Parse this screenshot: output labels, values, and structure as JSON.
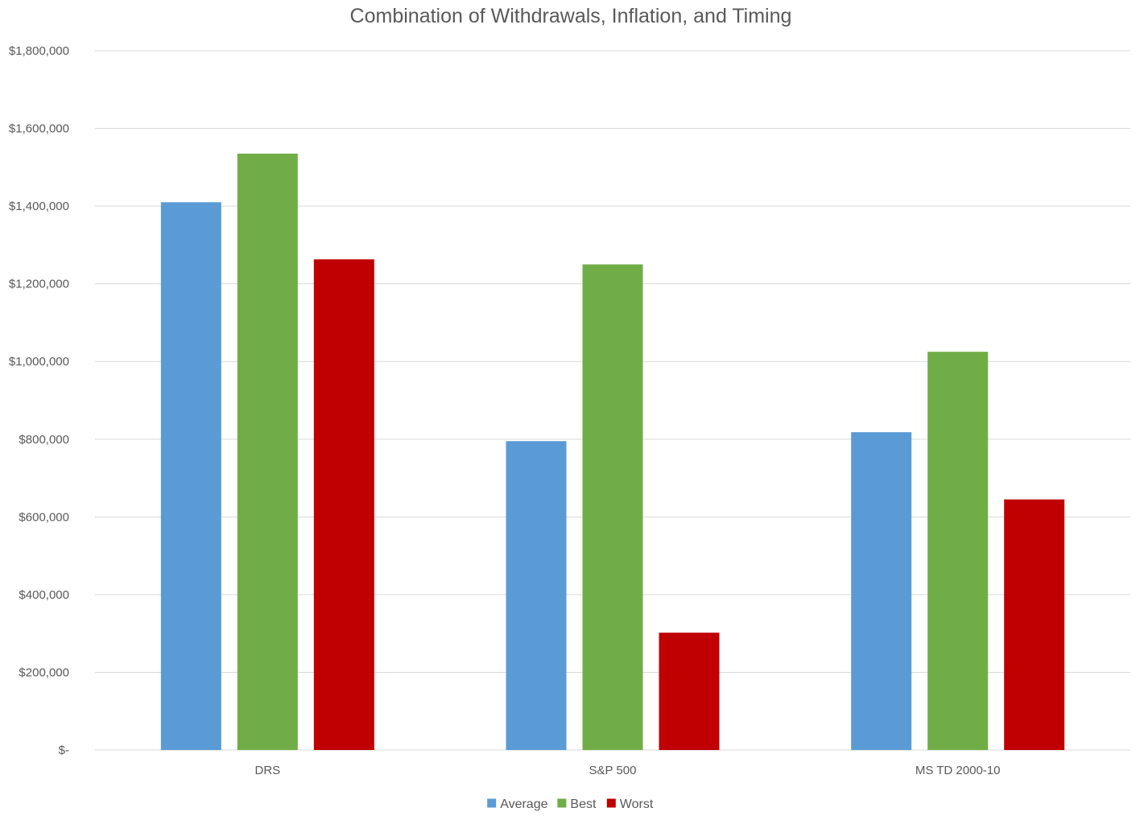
{
  "chart_data": {
    "type": "bar",
    "title": "Combination of Withdrawals, Inflation, and Timing",
    "xlabel": "",
    "ylabel": "",
    "categories": [
      "DRS",
      "S&P 500",
      "MS TD 2000-10"
    ],
    "series": [
      {
        "name": "Average",
        "color": "#5b9bd5",
        "values": [
          1410000,
          795000,
          818000
        ]
      },
      {
        "name": "Best",
        "color": "#70ad47",
        "values": [
          1535000,
          1250000,
          1025000
        ]
      },
      {
        "name": "Worst",
        "color": "#c00000",
        "values": [
          1263000,
          302000,
          645000
        ]
      }
    ],
    "ylim": [
      0,
      1800000
    ],
    "yticks": [
      {
        "value": 0,
        "label": "$-"
      },
      {
        "value": 200000,
        "label": "$200,000"
      },
      {
        "value": 400000,
        "label": "$400,000"
      },
      {
        "value": 600000,
        "label": "$600,000"
      },
      {
        "value": 800000,
        "label": "$800,000"
      },
      {
        "value": 1000000,
        "label": "$1,000,000"
      },
      {
        "value": 1200000,
        "label": "$1,200,000"
      },
      {
        "value": 1400000,
        "label": "$1,400,000"
      },
      {
        "value": 1600000,
        "label": "$1,600,000"
      },
      {
        "value": 1800000,
        "label": "$1,800,000"
      }
    ],
    "grid": true,
    "legend_position": "bottom"
  }
}
